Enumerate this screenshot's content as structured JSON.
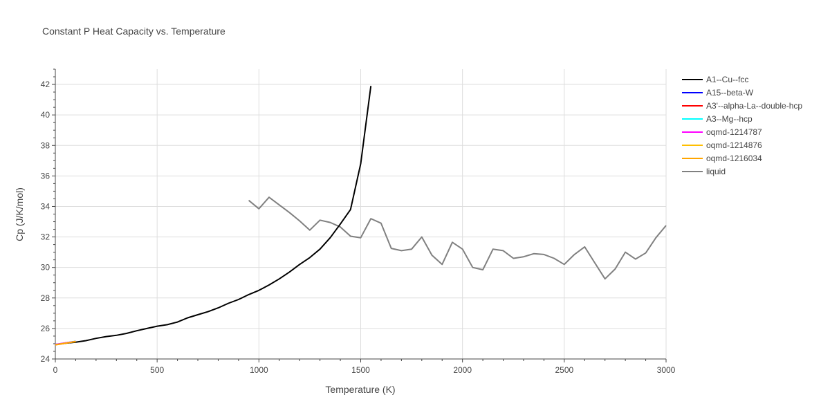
{
  "chart_data": {
    "type": "line",
    "title": "Constant P Heat Capacity vs. Temperature",
    "xlabel": "Temperature (K)",
    "ylabel": "Cp (J/K/mol)",
    "xlim": [
      0,
      3000
    ],
    "ylim": [
      24,
      43
    ],
    "xticks": [
      0,
      500,
      1000,
      1500,
      2000,
      2500,
      3000
    ],
    "xtick_labels": [
      "0",
      "500",
      "1000",
      "1500",
      "2000",
      "2500",
      "3000"
    ],
    "yticks": [
      24,
      26,
      28,
      30,
      32,
      34,
      36,
      38,
      40,
      42
    ],
    "ytick_labels": [
      "24",
      "26",
      "28",
      "30",
      "32",
      "34",
      "36",
      "38",
      "40",
      "42"
    ],
    "grid": true,
    "legend_position": "right",
    "series": [
      {
        "name": "A1--Cu--fcc",
        "color": "#000000",
        "x": [
          0,
          50,
          100,
          150,
          200,
          250,
          300,
          350,
          400,
          450,
          500,
          550,
          600,
          650,
          700,
          750,
          800,
          850,
          900,
          950,
          1000,
          1050,
          1100,
          1150,
          1200,
          1250,
          1300,
          1350,
          1400,
          1450,
          1500,
          1550
        ],
        "y": [
          24.95,
          25.03,
          25.1,
          25.2,
          25.35,
          25.47,
          25.55,
          25.68,
          25.85,
          26.0,
          26.15,
          26.25,
          26.42,
          26.7,
          26.9,
          27.1,
          27.35,
          27.65,
          27.9,
          28.22,
          28.5,
          28.85,
          29.25,
          29.7,
          30.2,
          30.65,
          31.2,
          31.95,
          32.85,
          33.8,
          36.8,
          41.9
        ]
      },
      {
        "name": "A15--beta-W",
        "color": "#0000ff",
        "x": [
          0,
          50,
          100
        ],
        "y": [
          24.95,
          25.05,
          25.15
        ]
      },
      {
        "name": "A3'--alpha-La--double-hcp",
        "color": "#ff0000",
        "x": [
          0,
          50,
          100
        ],
        "y": [
          24.93,
          25.04,
          25.15
        ]
      },
      {
        "name": "A3--Mg--hcp",
        "color": "#00ffff",
        "x": [
          0,
          50,
          100
        ],
        "y": [
          24.94,
          25.05,
          25.16
        ]
      },
      {
        "name": "oqmd-1214787",
        "color": "#ff00ff",
        "x": [
          0,
          50,
          100
        ],
        "y": [
          24.95,
          25.05,
          25.15
        ]
      },
      {
        "name": "oqmd-1214876",
        "color": "#ffbf00",
        "x": [
          0,
          50,
          100
        ],
        "y": [
          24.93,
          25.04,
          25.14
        ]
      },
      {
        "name": "oqmd-1216034",
        "color": "#ffa500",
        "x": [
          0,
          50,
          100
        ],
        "y": [
          24.92,
          25.03,
          25.15
        ]
      },
      {
        "name": "liquid",
        "color": "#808080",
        "x": [
          950,
          1000,
          1050,
          1100,
          1150,
          1200,
          1250,
          1300,
          1350,
          1400,
          1450,
          1500,
          1550,
          1600,
          1650,
          1700,
          1750,
          1800,
          1850,
          1900,
          1950,
          2000,
          2050,
          2100,
          2150,
          2200,
          2250,
          2300,
          2350,
          2400,
          2450,
          2500,
          2550,
          2600,
          2650,
          2700,
          2750,
          2800,
          2850,
          2900,
          2950,
          3000
        ],
        "y": [
          34.4,
          33.85,
          34.6,
          34.1,
          33.6,
          33.05,
          32.45,
          33.1,
          32.95,
          32.65,
          32.05,
          31.95,
          33.2,
          32.9,
          31.25,
          31.1,
          31.2,
          32.0,
          30.8,
          30.2,
          31.65,
          31.2,
          30.0,
          29.85,
          31.2,
          31.1,
          30.6,
          30.7,
          30.9,
          30.85,
          30.6,
          30.2,
          30.85,
          31.35,
          30.3,
          29.25,
          29.9,
          31.0,
          30.55,
          30.95,
          31.95,
          32.75
        ]
      }
    ]
  }
}
